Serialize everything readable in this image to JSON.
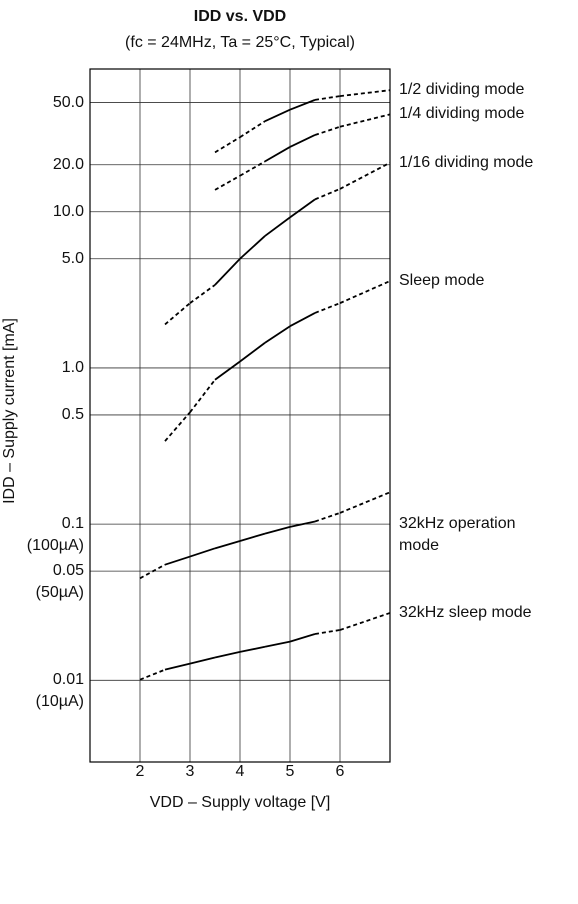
{
  "chart_data": {
    "type": "line",
    "title": "IDD vs. VDD",
    "subtitle": "(fc = 24MHz, Ta = 25°C, Typical)",
    "x_label": "VDD – Supply voltage [V]",
    "y_label": "IDD – Supply current [mA]",
    "xlim": [
      1,
      7
    ],
    "xticks": [
      2,
      3,
      4,
      5,
      6
    ],
    "ylim": [
      0.003,
      82
    ],
    "log_y": true,
    "grid": true,
    "yticks": [
      {
        "value": 50,
        "label": "50.0"
      },
      {
        "value": 20,
        "label": "20.0"
      },
      {
        "value": 10,
        "label": "10.0"
      },
      {
        "value": 5,
        "label": "5.0"
      },
      {
        "value": 1,
        "label": "1.0"
      },
      0.5,
      {
        "value": 0.1,
        "label": "0.1\n(100µA)"
      },
      {
        "value": 0.05,
        "label": "0.05\n(50µA)"
      },
      {
        "value": 0.01,
        "label": "0.01\n(10µA)"
      }
    ],
    "series": [
      {
        "name": "1/2 dividing mode",
        "color": "#000000",
        "solid_range": [
          4.5,
          5.5
        ],
        "x": [
          3.5,
          4,
          4.5,
          5,
          5.5,
          6,
          7
        ],
        "values": [
          24,
          30,
          38,
          45,
          52,
          55,
          60
        ]
      },
      {
        "name": "1/4 dividing mode",
        "color": "#000000",
        "solid_range": [
          4.5,
          5.5
        ],
        "x": [
          3.5,
          4,
          4.5,
          5,
          5.5,
          6,
          7
        ],
        "values": [
          13.8,
          17,
          21,
          26,
          31,
          35,
          42
        ]
      },
      {
        "name": "1/16 dividing mode",
        "color": "#000000",
        "solid_range": [
          3.5,
          5.5
        ],
        "x": [
          2.5,
          3,
          3.5,
          4,
          4.5,
          5,
          5.5,
          6,
          7
        ],
        "values": [
          1.9,
          2.6,
          3.4,
          5,
          7,
          9.2,
          12,
          14,
          20.6
        ]
      },
      {
        "name": "Sleep mode",
        "color": "#000000",
        "solid_range": [
          3.5,
          5.5
        ],
        "x": [
          2.5,
          3,
          3.5,
          4,
          4.5,
          5,
          5.5,
          6,
          7
        ],
        "values": [
          0.34,
          0.52,
          0.84,
          1.1,
          1.45,
          1.85,
          2.25,
          2.6,
          3.6
        ]
      },
      {
        "name": "32kHz operation\nmode",
        "color": "#000000",
        "solid_range": [
          2.5,
          5.5
        ],
        "x": [
          2,
          2.5,
          3,
          3.5,
          4,
          4.5,
          5,
          5.5,
          6,
          7
        ],
        "values": [
          0.045,
          0.055,
          0.062,
          0.07,
          0.078,
          0.087,
          0.096,
          0.104,
          0.118,
          0.16
        ]
      },
      {
        "name": "32kHz sleep mode",
        "color": "#000000",
        "solid_range": [
          2.5,
          5.5
        ],
        "x": [
          2,
          2.5,
          3,
          3.5,
          4,
          4.5,
          5,
          5.5,
          6,
          7
        ],
        "values": [
          0.0101,
          0.0117,
          0.0128,
          0.014,
          0.0152,
          0.0164,
          0.0177,
          0.0198,
          0.021,
          0.027
        ]
      }
    ]
  }
}
